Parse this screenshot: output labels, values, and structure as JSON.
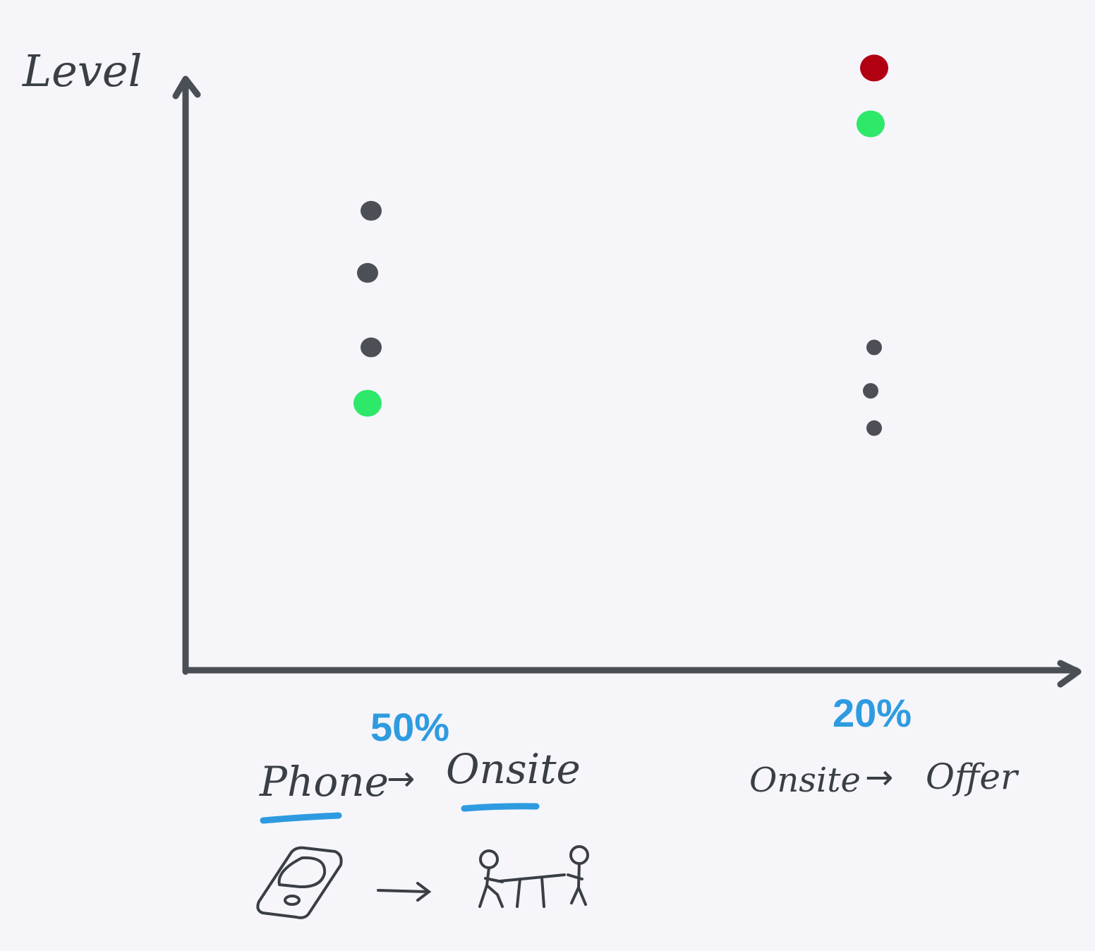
{
  "diagram": {
    "y_axis_label": "Level",
    "columns": [
      {
        "stage_rate": "50%",
        "from": "Phone",
        "to": "Onsite",
        "from_icon": "phone-icon",
        "to_icon": "onsite-interview-icon",
        "dots": [
          {
            "color": "dark",
            "level": 7.4
          },
          {
            "color": "dark",
            "level": 6.4
          },
          {
            "color": "dark",
            "level": 5.2
          },
          {
            "color": "green",
            "level": 4.3
          }
        ]
      },
      {
        "stage_rate": "20%",
        "from": "Onsite",
        "to": "Offer",
        "dots": [
          {
            "color": "red",
            "level": 9.7
          },
          {
            "color": "green",
            "level": 8.8
          },
          {
            "color": "dark",
            "level": 5.2
          },
          {
            "color": "dark",
            "level": 4.5
          },
          {
            "color": "dark",
            "level": 3.9
          }
        ]
      }
    ],
    "arrow_glyph": "→"
  },
  "colors": {
    "axis": "#4a4e55",
    "ink": "#3a3e45",
    "rate": "#2e9be0",
    "underline": "#2e9be0",
    "dark": "#4c4f56",
    "green": "#2ee86a",
    "red": "#b10012",
    "background": "#f5f5fa"
  }
}
